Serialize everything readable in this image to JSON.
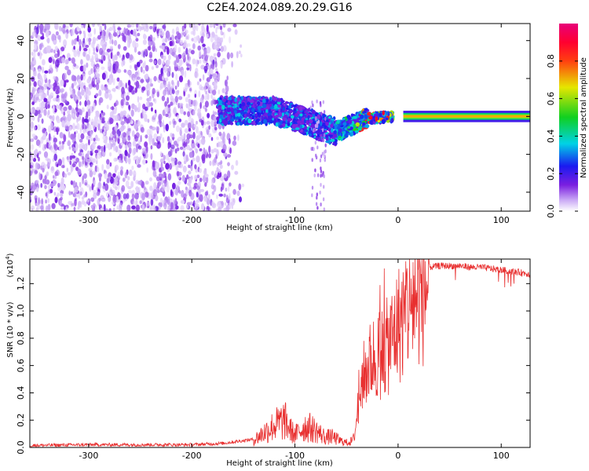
{
  "title": "C2E4.2024.089.20.29.G16",
  "colors": {
    "snr_line": "#e83030",
    "noise_purple": "#7a1fe0",
    "trace_red": "#e8102a",
    "trace_green": "#10d020",
    "axis": "#000000"
  },
  "colorbar": {
    "label": "Normalized spectral amplitude",
    "ticks": [
      "0.0",
      "0.2",
      "0.4",
      "0.6",
      "0.8"
    ],
    "tick_values": [
      0.0,
      0.2,
      0.4,
      0.6,
      0.8
    ],
    "range": [
      0,
      1
    ],
    "colormap": "rainbow (white → violet → blue → cyan → green → yellow → red → magenta)"
  },
  "chart_data": [
    {
      "type": "heatmap",
      "title": "C2E4.2024.089.20.29.G16",
      "xlabel": "Height of straight line (km)",
      "ylabel": "Frequency (Hz)",
      "xlim": [
        -357,
        128
      ],
      "ylim": [
        -50,
        49
      ],
      "x_ticks": [
        -300,
        -200,
        -100,
        0,
        100
      ],
      "x_tick_labels": [
        "-300",
        "-200",
        "-100",
        "0",
        "100"
      ],
      "y_ticks": [
        -40,
        -20,
        0,
        20,
        40
      ],
      "y_tick_labels": [
        "-40",
        "-20",
        "0",
        "20",
        "40"
      ],
      "description_regions": [
        {
          "x_range": [
            -357,
            -150
          ],
          "freq_range": [
            -50,
            49
          ],
          "content": "broadband noise, low amplitude (violet)"
        },
        {
          "x_range": [
            -170,
            -60
          ],
          "freq_center": [
            4,
            -8
          ],
          "content": "spread signal, amplitude up to ~0.3"
        },
        {
          "x_range": [
            -60,
            10
          ],
          "freq_center": [
            -4,
            0
          ],
          "content": "signal converging to 0 Hz"
        },
        {
          "x_range": [
            10,
            128
          ],
          "freq_center": [
            0,
            0
          ],
          "content": "narrow tone at 0 Hz, amplitude ~0.85"
        }
      ]
    },
    {
      "type": "line",
      "xlabel": "Height of straight line (km)",
      "ylabel": "SNR (10 * v/v)",
      "y_multiplier_label": "(x10",
      "y_multiplier_exp": "4",
      "y_multiplier_close": ")",
      "xlim": [
        -357,
        128
      ],
      "ylim": [
        0,
        1.38
      ],
      "x_ticks": [
        -300,
        -200,
        -100,
        0,
        100
      ],
      "x_tick_labels": [
        "-300",
        "-200",
        "-100",
        "0",
        "100"
      ],
      "y_ticks": [
        0,
        0.2,
        0.4,
        0.6,
        0.8,
        1.0,
        1.2
      ],
      "y_tick_labels": [
        "0.0",
        "0.2",
        "0.4",
        "0.6",
        "0.8",
        "1.0",
        "1.2"
      ],
      "series": [
        {
          "x": [
            -357,
            -300,
            -250,
            -200,
            -170,
            -140,
            -130,
            -120,
            -115,
            -110,
            -105,
            -100,
            -95,
            -90,
            -85,
            -80,
            -75,
            -70,
            -65,
            -60,
            -55,
            -50,
            -45,
            -42,
            -40,
            -38,
            -35,
            -30,
            -25,
            -20,
            -15,
            -10,
            -5,
            0,
            5,
            10,
            15,
            20,
            25,
            30,
            40,
            50,
            60,
            70,
            80,
            90,
            100,
            110,
            120,
            128
          ],
          "y": [
            0.015,
            0.02,
            0.02,
            0.02,
            0.03,
            0.06,
            0.12,
            0.18,
            0.2,
            0.22,
            0.15,
            0.1,
            0.14,
            0.17,
            0.16,
            0.14,
            0.11,
            0.08,
            0.09,
            0.07,
            0.05,
            0.04,
            0.05,
            0.1,
            0.25,
            0.4,
            0.55,
            0.65,
            0.72,
            0.75,
            0.78,
            0.82,
            0.9,
            1.0,
            1.05,
            1.15,
            1.2,
            1.25,
            1.3,
            1.32,
            1.33,
            1.33,
            1.33,
            1.32,
            1.32,
            1.31,
            1.3,
            1.29,
            1.28,
            1.27
          ]
        }
      ]
    }
  ]
}
